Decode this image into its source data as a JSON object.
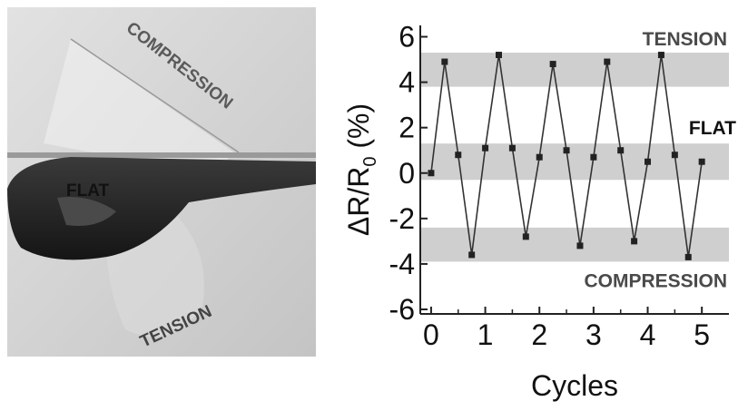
{
  "photo": {
    "labels": {
      "compression": "COMPRESSION",
      "flat": "FLAT",
      "tension": "TENSION"
    }
  },
  "chart_data": {
    "type": "line",
    "title": "",
    "xlabel": "Cycles",
    "ylabel": "ΔR/R",
    "ylabel_sub": "0",
    "ylabel_unit": "(%)",
    "xlim": [
      -0.2,
      5.5
    ],
    "ylim": [
      -6.2,
      6.5
    ],
    "x_ticks": [
      0,
      1,
      2,
      3,
      4,
      5
    ],
    "y_ticks": [
      6,
      4,
      2,
      0,
      -2,
      -4,
      -6
    ],
    "x_tick_labels": [
      "0",
      "1",
      "2",
      "3",
      "4",
      "5"
    ],
    "y_tick_labels": [
      "6",
      "4",
      "2",
      "0",
      "-2",
      "-4",
      "-6"
    ],
    "grid": false,
    "legend": "none",
    "bands": [
      {
        "label": "TENSION",
        "y0": 3.8,
        "y1": 5.3
      },
      {
        "label": "FLAT",
        "y0": -0.3,
        "y1": 1.3
      },
      {
        "label": "COMPRESSION",
        "y0": -3.9,
        "y1": -2.4
      }
    ],
    "series": [
      {
        "x": [
          0,
          0.25,
          0.5,
          0.75,
          1.0,
          1.25,
          1.5,
          1.75,
          2.0,
          2.25,
          2.5,
          2.75,
          3.0,
          3.25,
          3.5,
          3.75,
          4.0,
          4.25,
          4.5,
          4.75,
          5.0
        ],
        "y": [
          0.0,
          4.9,
          0.8,
          -3.6,
          1.1,
          5.2,
          1.1,
          -2.8,
          0.7,
          4.8,
          1.0,
          -3.2,
          0.7,
          4.9,
          1.0,
          -3.0,
          0.5,
          5.2,
          0.8,
          -3.7,
          0.5
        ]
      }
    ],
    "colors": {
      "line": "#333333",
      "marker": "#222222",
      "band": "#cfcfcf",
      "axis": "#222222",
      "band_text": "#4a4a4a"
    }
  }
}
